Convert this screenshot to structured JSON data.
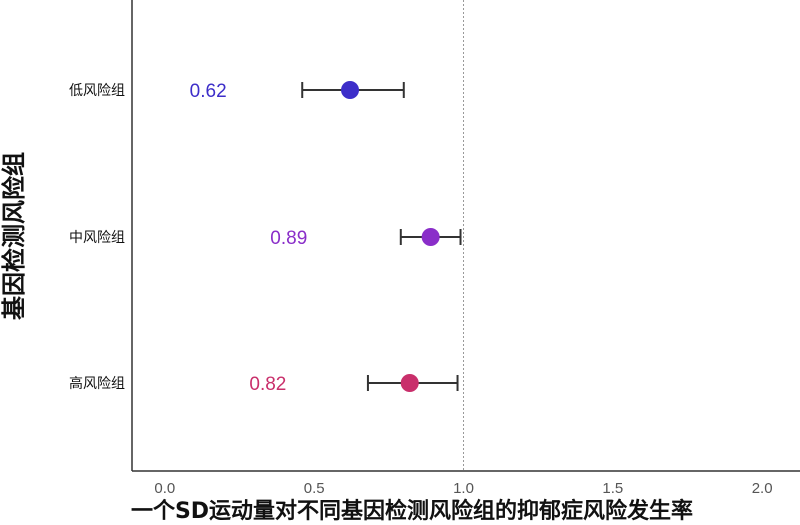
{
  "chart_data": {
    "type": "forest",
    "title": "",
    "xlabel": "一个SD运动量对不同基因检测风险组的抑郁症风险发生率",
    "ylabel": "基因检测风险组",
    "xlim": [
      -0.11,
      2.12
    ],
    "xticks": [
      "0.0",
      "0.5",
      "1.0",
      "1.5",
      "2.0"
    ],
    "reference_line": 1.0,
    "grid": false,
    "rows": [
      {
        "category": "低风险组",
        "estimate": 0.62,
        "label": "0.62",
        "lower": 0.46,
        "upper": 0.8,
        "color": "#3d2ec9"
      },
      {
        "category": "中风险组",
        "estimate": 0.89,
        "label": "0.89",
        "lower": 0.79,
        "upper": 0.99,
        "color": "#8a2ec9"
      },
      {
        "category": "高风险组",
        "estimate": 0.82,
        "label": "0.82",
        "lower": 0.68,
        "upper": 0.98,
        "color": "#c92f6b"
      }
    ]
  }
}
